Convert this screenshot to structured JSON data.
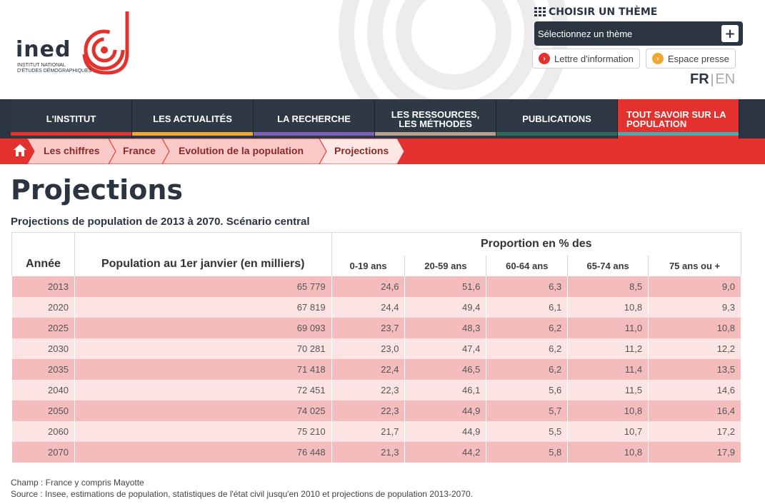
{
  "logo": {
    "word": "ined",
    "sub_line1": "INSTITUT NATIONAL",
    "sub_line2": "D'ÉTUDES DÉMOGRAPHIQUES"
  },
  "theme": {
    "title": "CHOISIR UN THÈME",
    "select_value": "Sélectionnez un thème",
    "plus_label": "+"
  },
  "quick_links": [
    {
      "label": "Lettre d'information",
      "icon": "chevron-right-icon",
      "color": "#e3322e"
    },
    {
      "label": "Espace presse",
      "icon": "chevron-right-icon",
      "color": "#f0a830"
    }
  ],
  "lang": {
    "fr": "FR",
    "sep": "|",
    "en": "EN"
  },
  "nav": [
    {
      "line1": "L'INSTITUT",
      "line2": "",
      "bar": "#e3322e"
    },
    {
      "line1": "LES ACTUALITÉS",
      "line2": "",
      "bar": "#f0a830"
    },
    {
      "line1": "LA RECHERCHE",
      "line2": "",
      "bar": "#7e62b8"
    },
    {
      "line1": "LES RESSOURCES,",
      "line2": "LES MÉTHODES",
      "bar": "#b8a090"
    },
    {
      "line1": "PUBLICATIONS",
      "line2": "",
      "bar": "#2f6b57"
    },
    {
      "line1": "TOUT SAVOIR SUR LA",
      "line2": "POPULATION",
      "bar": "#4aaab0"
    }
  ],
  "breadcrumb": {
    "home_icon": "home-icon",
    "items": [
      "Les chiffres",
      "France",
      "Evolution de la population",
      "Projections"
    ]
  },
  "page": {
    "title": "Projections",
    "table_title": "Projections de population de 2013 à 2070. Scénario central"
  },
  "table": {
    "group_header": "Proportion en % des",
    "headers": [
      "Année",
      "Population au 1er janvier (en milliers)",
      "0-19 ans",
      "20-59 ans",
      "60-64 ans",
      "65-74 ans",
      "75 ans ou +"
    ],
    "rows": [
      [
        "2013",
        "65 779",
        "24,6",
        "51,6",
        "6,3",
        "8,5",
        "9,0"
      ],
      [
        "2020",
        "67 819",
        "24,4",
        "49,4",
        "6,1",
        "10,8",
        "9,3"
      ],
      [
        "2025",
        "69 093",
        "23,7",
        "48,3",
        "6,2",
        "11,0",
        "10,8"
      ],
      [
        "2030",
        "70 281",
        "23,0",
        "47,4",
        "6,2",
        "11,2",
        "12,2"
      ],
      [
        "2035",
        "71 418",
        "22,4",
        "46,5",
        "6,2",
        "11,4",
        "13,5"
      ],
      [
        "2040",
        "72 451",
        "22,3",
        "46,1",
        "5,6",
        "11,5",
        "14,6"
      ],
      [
        "2050",
        "74 025",
        "22,3",
        "44,9",
        "5,7",
        "10,8",
        "16,4"
      ],
      [
        "2060",
        "75 210",
        "21,7",
        "44,9",
        "5,5",
        "10,7",
        "17,2"
      ],
      [
        "2070",
        "76 448",
        "21,3",
        "44,2",
        "5,8",
        "10,8",
        "17,9"
      ]
    ]
  },
  "notes": {
    "champ": "Champ : France y compris Mayotte",
    "source": "Source : Insee, estimations de population, statistiques de l'état civil jusqu'en 2010 et projections de population 2013-2070."
  },
  "colors": {
    "brand_red": "#e3322e",
    "navy": "#2b3541",
    "row_dark": "#f4bcbc",
    "row_light": "#fce4e4"
  }
}
